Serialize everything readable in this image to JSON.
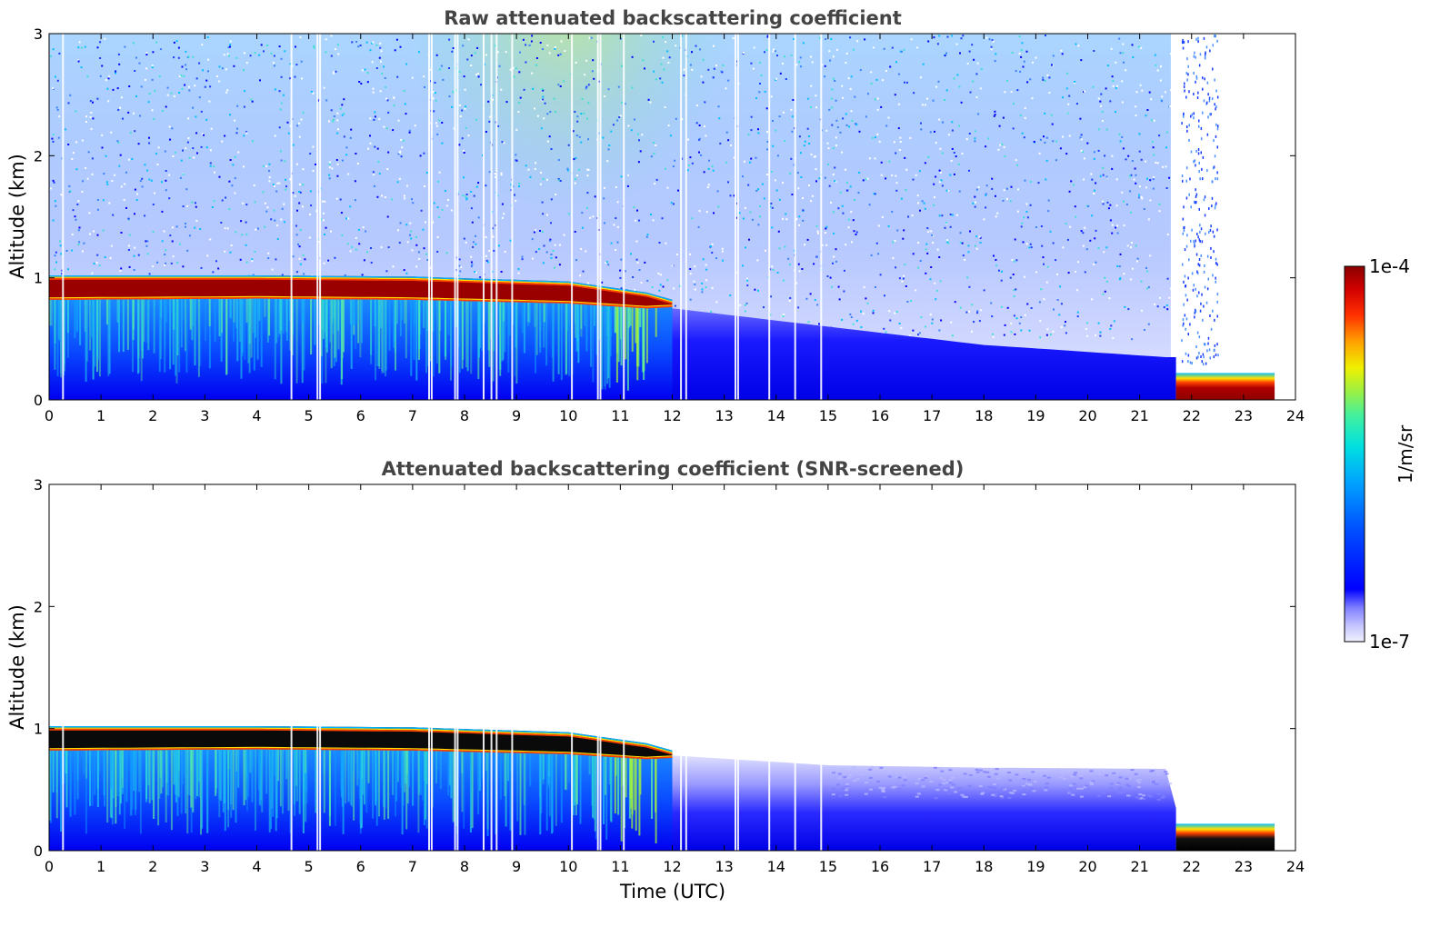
{
  "chart_data": [
    {
      "type": "heatmap",
      "title": "Raw attenuated backscattering coefficient",
      "xlabel": "",
      "ylabel": "Altitude (km)",
      "xlim": [
        0,
        24
      ],
      "ylim": [
        0,
        3
      ],
      "x_ticks": [
        "0",
        "1",
        "2",
        "3",
        "4",
        "5",
        "6",
        "7",
        "8",
        "9",
        "10",
        "11",
        "12",
        "13",
        "14",
        "15",
        "16",
        "17",
        "18",
        "19",
        "20",
        "21",
        "22",
        "23",
        "24"
      ],
      "y_ticks": [
        "0",
        "1",
        "2",
        "3"
      ],
      "features": {
        "cloud_layer": [
          {
            "time": 0,
            "base_km": 0.82,
            "top_km": 1.02
          },
          {
            "time": 4,
            "base_km": 0.83,
            "top_km": 1.02
          },
          {
            "time": 7,
            "base_km": 0.82,
            "top_km": 1.01
          },
          {
            "time": 10,
            "base_km": 0.79,
            "top_km": 0.97
          },
          {
            "time": 11.5,
            "base_km": 0.75,
            "top_km": 0.88
          },
          {
            "time": 12,
            "base_km": 0.76,
            "top_km": 0.82
          }
        ],
        "boundary_layer_top_km": [
          {
            "time": 12,
            "value": 0.75
          },
          {
            "time": 15,
            "value": 0.6
          },
          {
            "time": 18,
            "value": 0.45
          },
          {
            "time": 21.5,
            "value": 0.35
          }
        ],
        "surface_fog": {
          "start": 21.7,
          "end": 23.6,
          "top_km": 0.22
        },
        "noise_region": true
      }
    },
    {
      "type": "heatmap",
      "title": "Attenuated backscattering coefficient (SNR-screened)",
      "xlabel": "Time (UTC)",
      "ylabel": "Altitude (km)",
      "xlim": [
        0,
        24
      ],
      "ylim": [
        0,
        3
      ],
      "x_ticks": [
        "0",
        "1",
        "2",
        "3",
        "4",
        "5",
        "6",
        "7",
        "8",
        "9",
        "10",
        "11",
        "12",
        "13",
        "14",
        "15",
        "16",
        "17",
        "18",
        "19",
        "20",
        "21",
        "22",
        "23",
        "24"
      ],
      "y_ticks": [
        "0",
        "1",
        "2",
        "3"
      ],
      "features": {
        "cloud_layer": [
          {
            "time": 0,
            "base_km": 0.82,
            "top_km": 1.02
          },
          {
            "time": 4,
            "base_km": 0.83,
            "top_km": 1.02
          },
          {
            "time": 7,
            "base_km": 0.82,
            "top_km": 1.01
          },
          {
            "time": 10,
            "base_km": 0.79,
            "top_km": 0.97
          },
          {
            "time": 11.5,
            "base_km": 0.75,
            "top_km": 0.88
          },
          {
            "time": 12,
            "base_km": 0.76,
            "top_km": 0.82
          }
        ],
        "boundary_layer_top_km": [
          {
            "time": 12,
            "value": 0.78
          },
          {
            "time": 15,
            "value": 0.7
          },
          {
            "time": 18,
            "value": 0.68
          },
          {
            "time": 21.5,
            "value": 0.67
          }
        ],
        "surface_fog": {
          "start": 21.7,
          "end": 23.6,
          "top_km": 0.22
        },
        "noise_region": false
      }
    }
  ],
  "colorbar": {
    "max_label": "1e-4",
    "min_label": "1e-7",
    "units": "1/m/sr",
    "colors": [
      "#f0f0ff",
      "#c8c8ff",
      "#9696ff",
      "#5a5aff",
      "#0000ff",
      "#0050ff",
      "#00a0ff",
      "#00e6e6",
      "#30f0a0",
      "#a0f040",
      "#f0f000",
      "#ffa000",
      "#ff4000",
      "#e60000",
      "#8b0000"
    ]
  }
}
